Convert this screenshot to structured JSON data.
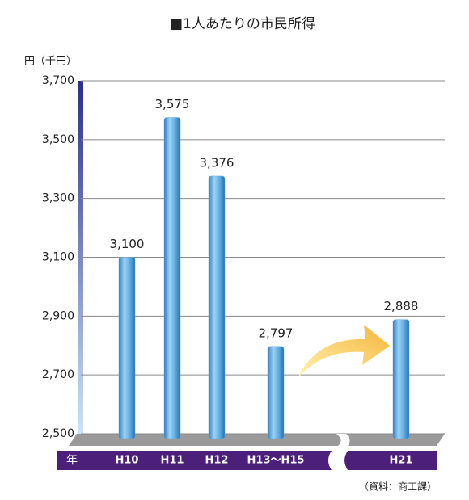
{
  "chart_data": {
    "type": "bar",
    "title": "■1人あたりの市民所得",
    "y_axis_label": "円（千円）",
    "x_axis_label": "年",
    "source": "（資料：商工課）",
    "categories": [
      "H10",
      "H11",
      "H12",
      "H13〜H15",
      "H21"
    ],
    "values": [
      3100,
      3575,
      3376,
      2797,
      2888
    ],
    "value_labels": [
      "3,100",
      "3,575",
      "3,376",
      "2,797",
      "2,888"
    ],
    "color": "#5aa9e0",
    "ylim": [
      2500,
      3700
    ],
    "yticks": [
      {
        "value": 2500,
        "label": "2,500"
      },
      {
        "value": 2700,
        "label": "2,700"
      },
      {
        "value": 2900,
        "label": "2,900"
      },
      {
        "value": 3100,
        "label": "3,100"
      },
      {
        "value": 3300,
        "label": "3,300"
      },
      {
        "value": 3500,
        "label": "3,500"
      },
      {
        "value": 3700,
        "label": "3,700"
      }
    ],
    "grid": true
  }
}
